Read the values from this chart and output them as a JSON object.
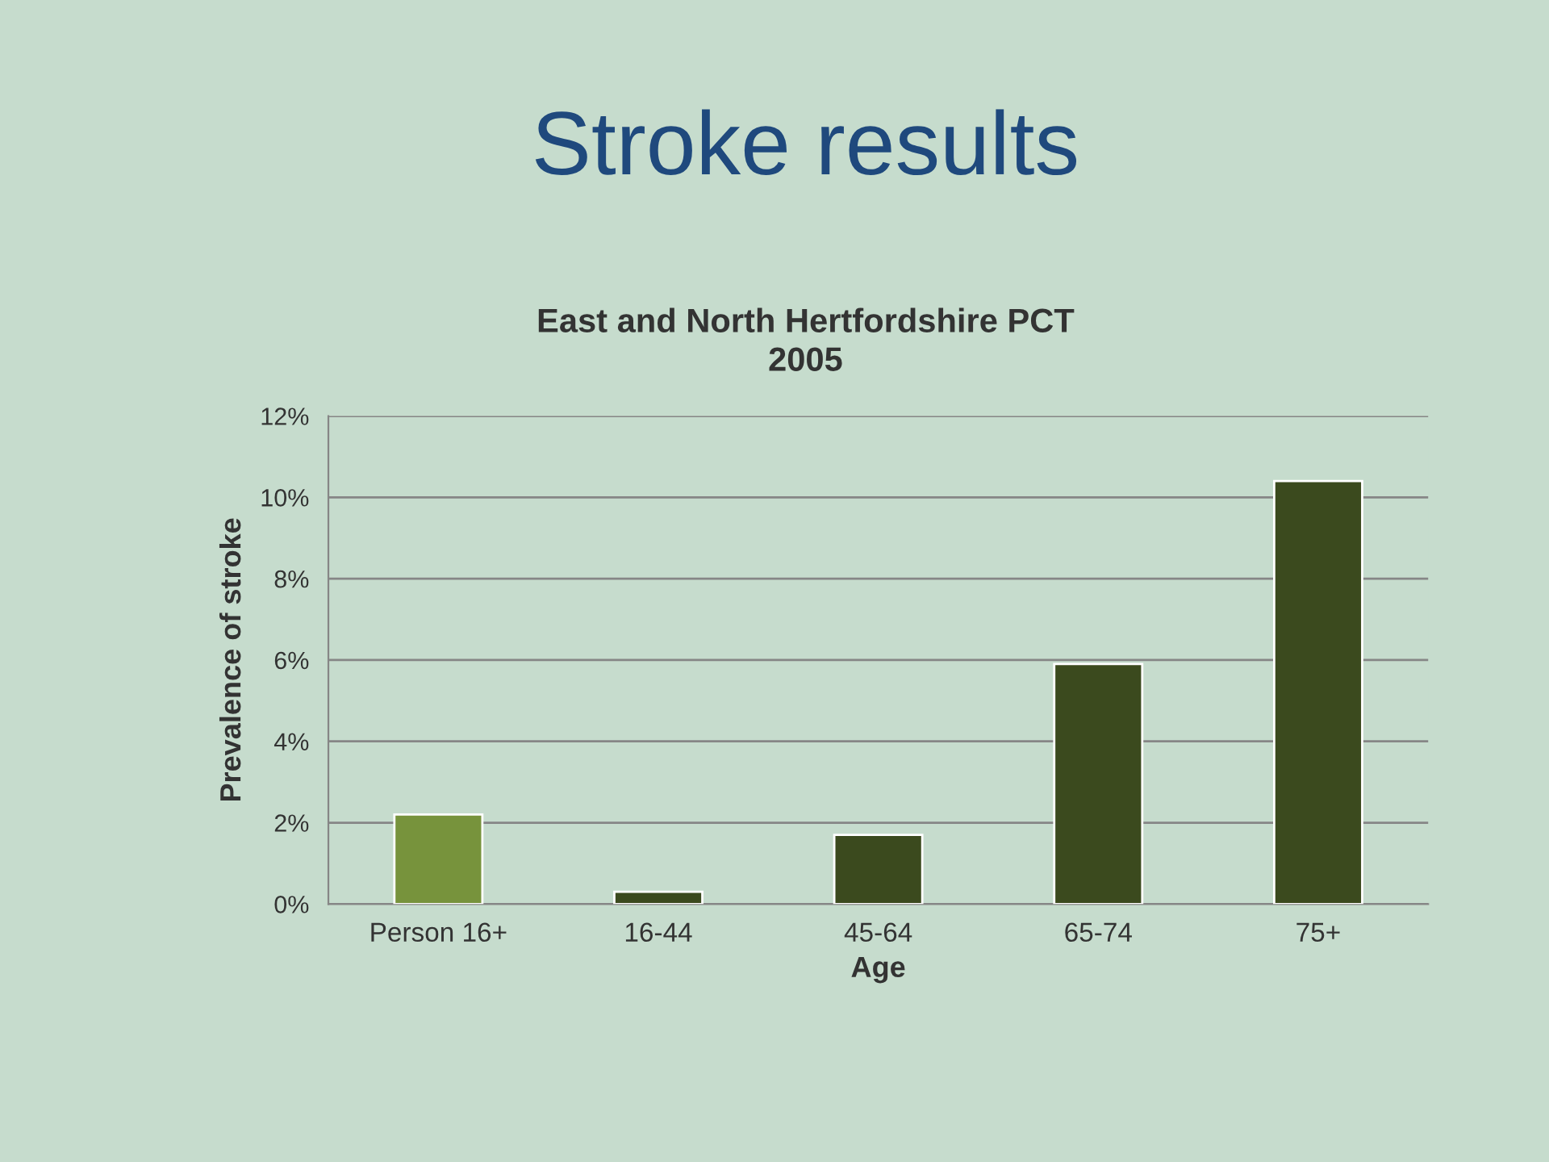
{
  "chart_data": {
    "type": "bar",
    "title": "Stroke results",
    "subtitle": "East and North Hertfordshire PCT\n2005",
    "xlabel": "Age",
    "ylabel": "Prevalence of stroke",
    "categories": [
      "Person 16+",
      "16-44",
      "45-64",
      "65-74",
      "75+"
    ],
    "values": [
      2.2,
      0.3,
      1.7,
      5.9,
      10.4
    ],
    "colors": [
      "#77933c",
      "#3b4a1e",
      "#3b4a1e",
      "#3b4a1e",
      "#3b4a1e"
    ],
    "ylim": [
      0,
      12
    ],
    "yticks": [
      {
        "value": 0,
        "label": "0%"
      },
      {
        "value": 2,
        "label": "2%"
      },
      {
        "value": 4,
        "label": "4%"
      },
      {
        "value": 6,
        "label": "6%"
      },
      {
        "value": 8,
        "label": "8%"
      },
      {
        "value": 10,
        "label": "10%"
      },
      {
        "value": 12,
        "label": "12%"
      }
    ],
    "grid": "y",
    "legend": false
  }
}
